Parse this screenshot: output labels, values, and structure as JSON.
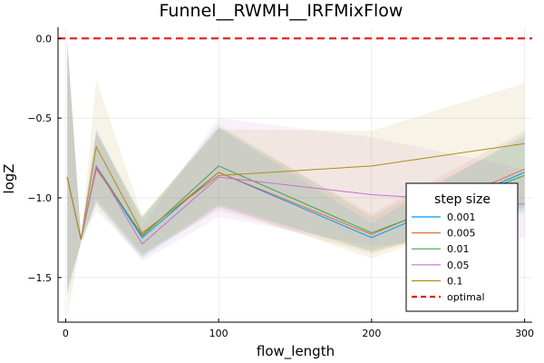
{
  "chart_data": {
    "type": "line",
    "title": "Funnel__RWMH__IRFMixFlow",
    "xlabel": "flow_length",
    "ylabel": "logZ",
    "xlim": [
      -5,
      305
    ],
    "ylim": [
      -1.78,
      0.07
    ],
    "xticks": [
      0,
      100,
      200,
      300
    ],
    "yticks": [
      0.0,
      -0.5,
      -1.0,
      -1.5
    ],
    "xtick_labels": [
      "0",
      "100",
      "200",
      "300"
    ],
    "ytick_labels": [
      "0.0",
      "-0.5",
      "-1.0",
      "-1.5"
    ],
    "grid": true,
    "legend": {
      "title": "step size",
      "position": "bottom-right"
    },
    "x": [
      1,
      10,
      20,
      50,
      100,
      200,
      300
    ],
    "series": [
      {
        "name": "0.001",
        "color": "#009AFA",
        "values": [
          -0.87,
          -1.26,
          -0.81,
          -1.25,
          -0.84,
          -1.25,
          -0.84
        ],
        "band_lower": [
          -1.58,
          -1.28,
          -1.02,
          -1.38,
          -1.06,
          -1.33,
          -1.08
        ],
        "band_upper": [
          0.0,
          -1.24,
          -0.58,
          -1.13,
          -0.56,
          -1.16,
          -0.6
        ]
      },
      {
        "name": "0.005",
        "color": "#E36F47",
        "values": [
          -0.87,
          -1.26,
          -0.82,
          -1.23,
          -0.84,
          -1.23,
          -0.82
        ],
        "band_lower": [
          -1.55,
          -1.28,
          -1.0,
          -1.35,
          -1.08,
          -1.35,
          -1.06
        ],
        "band_upper": [
          -0.02,
          -1.24,
          -0.6,
          -1.12,
          -0.56,
          -1.1,
          -0.58
        ]
      },
      {
        "name": "0.01",
        "color": "#3EA44E",
        "values": [
          -0.87,
          -1.26,
          -0.8,
          -1.24,
          -0.8,
          -1.22,
          -0.86
        ],
        "band_lower": [
          -1.6,
          -1.28,
          -1.03,
          -1.36,
          -1.04,
          -1.34,
          -1.1
        ],
        "band_upper": [
          -0.02,
          -1.24,
          -0.58,
          -1.12,
          -0.54,
          -1.12,
          -0.62
        ]
      },
      {
        "name": "0.05",
        "color": "#C371D2",
        "values": [
          -0.87,
          -1.26,
          -0.8,
          -1.29,
          -0.87,
          -0.98,
          -1.04
        ],
        "band_lower": [
          -1.62,
          -1.28,
          -1.04,
          -1.4,
          -1.12,
          -1.3,
          -1.25
        ],
        "band_upper": [
          -0.05,
          -1.24,
          -0.56,
          -1.18,
          -0.5,
          -0.62,
          -0.82
        ]
      },
      {
        "name": "0.1",
        "color": "#AC8E18",
        "values": [
          -0.87,
          -1.26,
          -0.68,
          -1.22,
          -0.86,
          -0.8,
          -0.66
        ],
        "band_lower": [
          -1.75,
          -1.28,
          -1.08,
          -1.37,
          -1.05,
          -1.38,
          -1.05
        ],
        "band_upper": [
          -0.02,
          -1.24,
          -0.26,
          -1.11,
          -0.57,
          -0.58,
          -0.28
        ]
      }
    ],
    "reference_line": {
      "name": "optimal",
      "y": 0.0,
      "color": "#E31A1C",
      "style": "dashed"
    }
  }
}
